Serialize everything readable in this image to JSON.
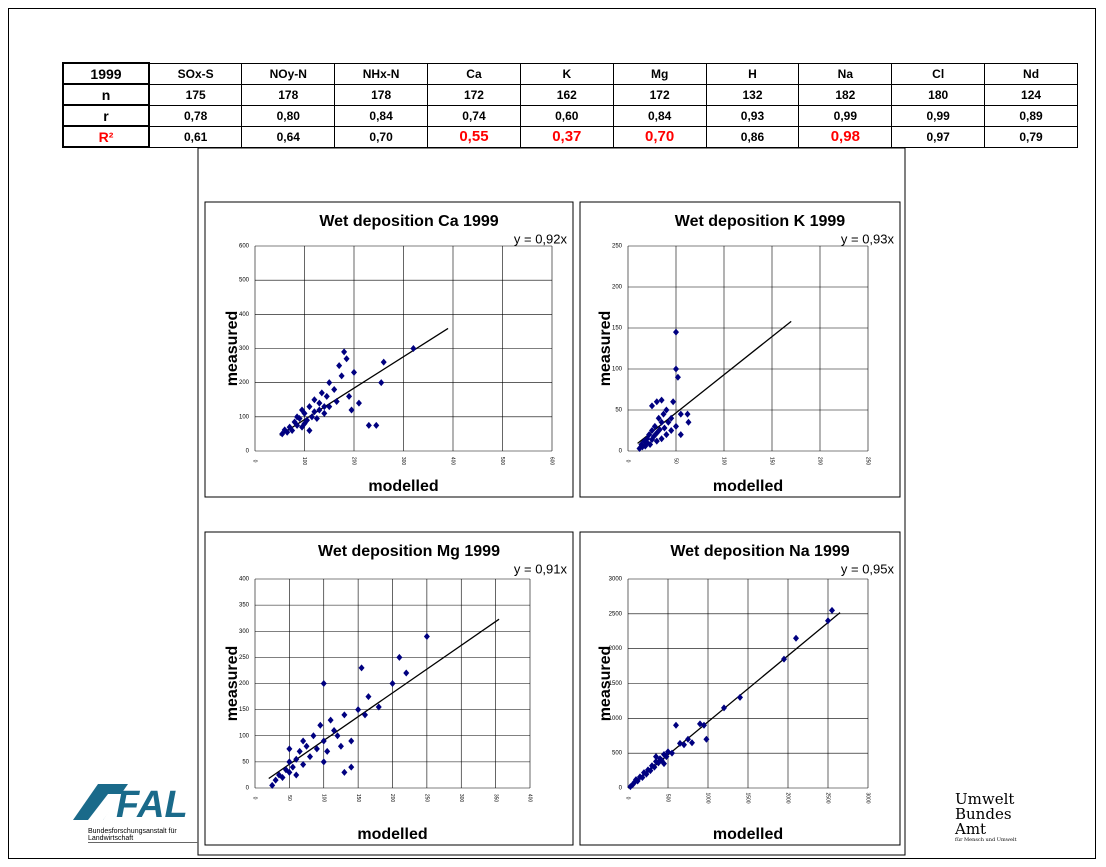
{
  "table": {
    "header": [
      "1999",
      "SOx-S",
      "NOy-N",
      "NHx-N",
      "Ca",
      "K",
      "Mg",
      "H",
      "Na",
      "Cl",
      "Nd"
    ],
    "rows": [
      [
        "n",
        175,
        178,
        178,
        172,
        162,
        172,
        132,
        182,
        180,
        124
      ],
      [
        "r",
        "0,78",
        "0,80",
        "0,84",
        "0,74",
        "0,60",
        "0,84",
        "0,93",
        "0,99",
        "0,99",
        "0,89"
      ],
      [
        "R²",
        "0,61",
        "0,64",
        "0,70",
        "0,55",
        "0,37",
        "0,70",
        "0,86",
        "0,98",
        "0,97",
        "0,79"
      ]
    ],
    "highlight_row": 2,
    "highlight_columns": [
      4,
      5,
      6,
      8
    ],
    "highlight_color": "#ff0000"
  },
  "chart_data": [
    {
      "type": "scatter",
      "title": "Wet deposition Ca 1999",
      "x_label": "modelled",
      "y_label": "measured",
      "color": "#000080",
      "xlim": [
        0,
        600
      ],
      "ylim": [
        0,
        600
      ],
      "xticks": [
        0,
        100,
        200,
        300,
        400,
        500,
        600
      ],
      "yticks": [
        0,
        100,
        200,
        300,
        400,
        500,
        600
      ],
      "grid": true,
      "trendline": {
        "label": "y = 0,92x",
        "slope": 0.92,
        "x_range": [
          50,
          390
        ]
      },
      "x": [
        55,
        60,
        65,
        70,
        75,
        80,
        85,
        90,
        95,
        100,
        100,
        105,
        110,
        110,
        115,
        120,
        120,
        125,
        130,
        130,
        135,
        140,
        145,
        150,
        150,
        160,
        165,
        170,
        175,
        180,
        185,
        190,
        200,
        210,
        230,
        245,
        255,
        260,
        320,
        195,
        140,
        85,
        95
      ],
      "y": [
        50,
        62,
        55,
        70,
        60,
        85,
        75,
        95,
        70,
        110,
        80,
        90,
        130,
        60,
        100,
        150,
        115,
        95,
        140,
        120,
        170,
        110,
        160,
        200,
        130,
        180,
        145,
        250,
        220,
        290,
        270,
        160,
        230,
        140,
        75,
        75,
        200,
        260,
        300,
        120,
        130,
        100,
        120
      ]
    },
    {
      "type": "scatter",
      "title": "Wet deposition K 1999",
      "x_label": "modelled",
      "y_label": "measured",
      "color": "#000080",
      "xlim": [
        0,
        250
      ],
      "ylim": [
        0,
        250
      ],
      "xticks": [
        0,
        50,
        100,
        150,
        200,
        250
      ],
      "yticks": [
        0,
        50,
        100,
        150,
        200,
        250
      ],
      "grid": true,
      "trendline": {
        "label": "y = 0,93x",
        "slope": 0.93,
        "x_range": [
          10,
          170
        ]
      },
      "x": [
        12,
        14,
        15,
        17,
        18,
        20,
        20,
        22,
        23,
        25,
        25,
        27,
        28,
        30,
        30,
        32,
        33,
        35,
        35,
        37,
        38,
        40,
        40,
        42,
        45,
        45,
        47,
        50,
        50,
        52,
        50,
        55,
        55,
        62,
        63,
        25,
        30,
        35
      ],
      "y": [
        3,
        8,
        5,
        12,
        6,
        15,
        10,
        20,
        8,
        25,
        14,
        18,
        30,
        22,
        12,
        40,
        26,
        35,
        15,
        45,
        28,
        20,
        50,
        35,
        40,
        25,
        60,
        30,
        100,
        90,
        145,
        45,
        20,
        45,
        35,
        55,
        60,
        62
      ]
    },
    {
      "type": "scatter",
      "title": "Wet deposition Mg 1999",
      "x_label": "modelled",
      "y_label": "measured",
      "color": "#000080",
      "xlim": [
        0,
        400
      ],
      "ylim": [
        0,
        400
      ],
      "xticks": [
        0,
        50,
        100,
        150,
        200,
        250,
        300,
        350,
        400
      ],
      "yticks": [
        0,
        50,
        100,
        150,
        200,
        250,
        300,
        350,
        400
      ],
      "grid": true,
      "trendline": {
        "label": "y = 0,91x",
        "slope": 0.91,
        "x_range": [
          20,
          355
        ]
      },
      "x": [
        25,
        30,
        35,
        40,
        45,
        50,
        50,
        55,
        60,
        60,
        65,
        70,
        75,
        80,
        85,
        90,
        95,
        100,
        100,
        105,
        110,
        115,
        120,
        125,
        130,
        140,
        150,
        155,
        160,
        165,
        180,
        200,
        210,
        220,
        250,
        100,
        130,
        140,
        70,
        50
      ],
      "y": [
        5,
        15,
        25,
        20,
        35,
        30,
        50,
        40,
        55,
        25,
        70,
        45,
        80,
        60,
        100,
        75,
        120,
        50,
        90,
        70,
        130,
        110,
        100,
        80,
        140,
        90,
        150,
        230,
        140,
        175,
        155,
        200,
        250,
        220,
        290,
        200,
        30,
        40,
        90,
        75
      ]
    },
    {
      "type": "scatter",
      "title": "Wet deposition Na 1999",
      "x_label": "modelled",
      "y_label": "measured",
      "color": "#000080",
      "xlim": [
        0,
        3000
      ],
      "ylim": [
        0,
        3000
      ],
      "xticks": [
        0,
        500,
        1000,
        1500,
        2000,
        2500,
        3000
      ],
      "yticks": [
        0,
        500,
        1000,
        1500,
        2000,
        2500,
        3000
      ],
      "grid": true,
      "trendline": {
        "label": "y = 0,95x",
        "slope": 0.95,
        "x_range": [
          0,
          2650
        ]
      },
      "x": [
        30,
        60,
        80,
        100,
        120,
        150,
        180,
        200,
        230,
        250,
        280,
        300,
        330,
        350,
        380,
        400,
        420,
        450,
        480,
        500,
        550,
        600,
        650,
        700,
        750,
        800,
        900,
        950,
        980,
        1200,
        1400,
        1950,
        2100,
        2500,
        2550,
        350,
        450
      ],
      "y": [
        20,
        50,
        80,
        120,
        100,
        160,
        150,
        220,
        200,
        260,
        250,
        320,
        300,
        380,
        360,
        420,
        400,
        480,
        450,
        520,
        500,
        900,
        640,
        620,
        700,
        650,
        920,
        900,
        700,
        1150,
        1300,
        1850,
        2150,
        2400,
        2550,
        450,
        350
      ]
    }
  ],
  "logos": {
    "left": {
      "name": "FAL",
      "subtitle": "Bundesforschungsanstalt für Landwirtschaft"
    },
    "right": {
      "lines": [
        "Umwelt",
        "Bundes",
        "Amt"
      ],
      "subtitle": "für Mensch und Umwelt"
    }
  }
}
